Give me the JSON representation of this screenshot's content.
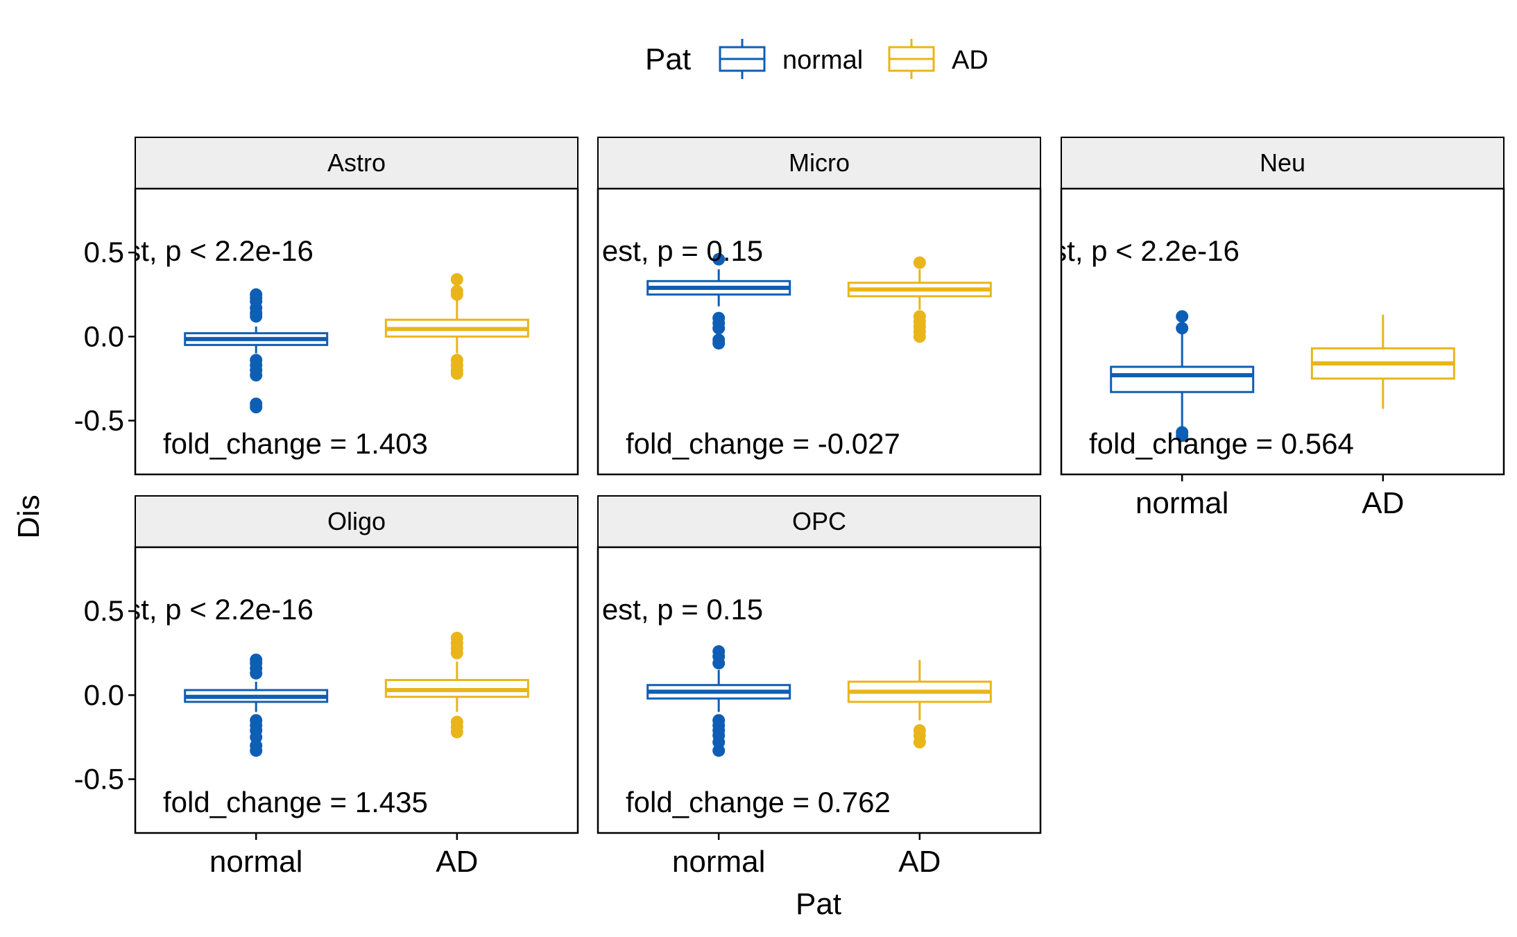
{
  "chart_data": {
    "type": "box",
    "legend": {
      "title": "Pat",
      "position": "top",
      "entries": [
        {
          "label": "normal",
          "color": "#0F5EB5"
        },
        {
          "label": "AD",
          "color": "#E9B51A"
        }
      ]
    },
    "xlabel": "Pat",
    "ylabel": "Dis",
    "categories": [
      "normal",
      "AD"
    ],
    "yticks": [
      "0.5",
      "0.0",
      "-0.5"
    ],
    "ylim": [
      -0.82,
      0.88
    ],
    "panels": [
      {
        "title": "Astro",
        "test_label": "st, p < 2.2e-16",
        "fold_label": "fold_change = 1.403",
        "boxes": [
          {
            "group": "normal",
            "q1": -0.05,
            "median": -0.015,
            "q3": 0.02,
            "whisker_low": -0.1,
            "whisker_high": 0.06,
            "outliers": [
              0.25,
              0.23,
              0.21,
              0.17,
              0.14,
              0.12,
              -0.14,
              -0.17,
              -0.2,
              -0.23,
              -0.4,
              -0.42
            ]
          },
          {
            "group": "AD",
            "q1": 0.0,
            "median": 0.045,
            "q3": 0.1,
            "whisker_low": -0.1,
            "whisker_high": 0.22,
            "outliers": [
              0.34,
              0.27,
              0.25,
              -0.14,
              -0.17,
              -0.2,
              -0.22
            ]
          }
        ]
      },
      {
        "title": "Micro",
        "test_label": "est, p = 0.15",
        "fold_label": "fold_change = -0.027",
        "boxes": [
          {
            "group": "normal",
            "q1": 0.25,
            "median": 0.29,
            "q3": 0.33,
            "whisker_low": 0.18,
            "whisker_high": 0.4,
            "outliers": [
              0.46,
              0.11,
              0.08,
              0.05,
              -0.02,
              -0.04
            ]
          },
          {
            "group": "AD",
            "q1": 0.24,
            "median": 0.28,
            "q3": 0.32,
            "whisker_low": 0.16,
            "whisker_high": 0.4,
            "outliers": [
              0.44,
              0.12,
              0.09,
              0.06,
              0.03,
              0.0
            ]
          }
        ]
      },
      {
        "title": "Neu",
        "test_label": "st, p < 2.2e-16",
        "fold_label": "fold_change = 0.564",
        "show_xaxis": true,
        "boxes": [
          {
            "group": "normal",
            "q1": -0.33,
            "median": -0.23,
            "q3": -0.18,
            "whisker_low": -0.56,
            "whisker_high": 0.05,
            "outliers": [
              0.12,
              0.05,
              -0.57,
              -0.59
            ]
          },
          {
            "group": "AD",
            "q1": -0.25,
            "median": -0.16,
            "q3": -0.07,
            "whisker_low": -0.43,
            "whisker_high": 0.13,
            "outliers": []
          }
        ]
      },
      {
        "title": "Oligo",
        "test_label": "st, p < 2.2e-16",
        "fold_label": "fold_change = 1.435",
        "show_xaxis": true,
        "boxes": [
          {
            "group": "normal",
            "q1": -0.04,
            "median": -0.01,
            "q3": 0.03,
            "whisker_low": -0.1,
            "whisker_high": 0.08,
            "outliers": [
              0.21,
              0.19,
              0.16,
              0.13,
              -0.15,
              -0.18,
              -0.21,
              -0.25,
              -0.3,
              -0.33
            ]
          },
          {
            "group": "AD",
            "q1": -0.01,
            "median": 0.03,
            "q3": 0.09,
            "whisker_low": -0.1,
            "whisker_high": 0.2,
            "outliers": [
              0.34,
              0.31,
              0.28,
              0.25,
              -0.16,
              -0.19,
              -0.22
            ]
          }
        ]
      },
      {
        "title": "OPC",
        "test_label": "est, p = 0.15",
        "fold_label": "fold_change = 0.762",
        "show_xaxis": true,
        "boxes": [
          {
            "group": "normal",
            "q1": -0.02,
            "median": 0.02,
            "q3": 0.06,
            "whisker_low": -0.1,
            "whisker_high": 0.15,
            "outliers": [
              0.26,
              0.23,
              0.19,
              -0.15,
              -0.18,
              -0.21,
              -0.24,
              -0.28,
              -0.33
            ]
          },
          {
            "group": "AD",
            "q1": -0.04,
            "median": 0.02,
            "q3": 0.08,
            "whisker_low": -0.15,
            "whisker_high": 0.21,
            "outliers": [
              -0.21,
              -0.24,
              -0.28
            ]
          }
        ]
      }
    ]
  }
}
